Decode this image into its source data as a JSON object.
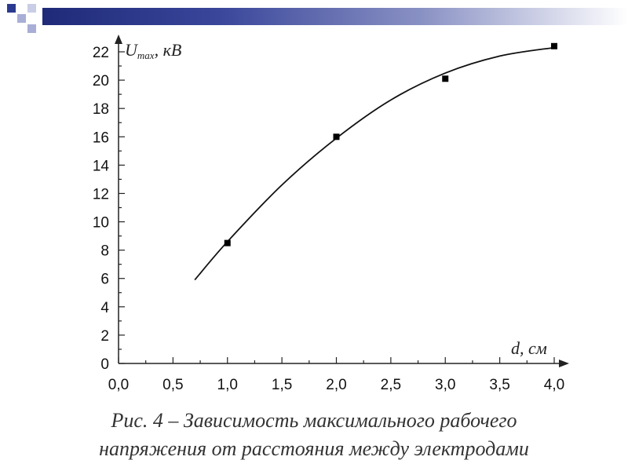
{
  "chart_data": {
    "type": "scatter",
    "xlabel": "d, см",
    "ylabel_main": "U",
    "ylabel_sub": "max",
    "ylabel_rest": ", кВ",
    "xlim": [
      0.0,
      4.0
    ],
    "ylim": [
      0,
      22
    ],
    "x_ticks": [
      "0,0",
      "0,5",
      "1,0",
      "1,5",
      "2,0",
      "2,5",
      "3,0",
      "3,5",
      "4,0"
    ],
    "y_ticks": [
      "0",
      "2",
      "4",
      "6",
      "8",
      "10",
      "12",
      "14",
      "16",
      "18",
      "20",
      "22"
    ],
    "points": [
      {
        "x": 1.0,
        "y": 8.5
      },
      {
        "x": 2.0,
        "y": 16.0
      },
      {
        "x": 3.0,
        "y": 20.1
      },
      {
        "x": 4.0,
        "y": 22.4
      }
    ],
    "fit_curve": [
      {
        "x": 0.7,
        "y": 5.9
      },
      {
        "x": 1.0,
        "y": 8.6
      },
      {
        "x": 1.5,
        "y": 12.6
      },
      {
        "x": 2.0,
        "y": 15.9
      },
      {
        "x": 2.5,
        "y": 18.6
      },
      {
        "x": 3.0,
        "y": 20.5
      },
      {
        "x": 3.5,
        "y": 21.7
      },
      {
        "x": 4.0,
        "y": 22.3
      }
    ]
  },
  "caption": {
    "line1": "Рис. 4 – Зависимость максимального рабочего",
    "line2": "напряжения от расстояния между электродами"
  },
  "colors": {
    "bar_dark": "#1f2a78",
    "square_blue": "#2b3a8f",
    "square_light": "#a8aed6",
    "axis": "#222222",
    "marker": "#000000"
  }
}
